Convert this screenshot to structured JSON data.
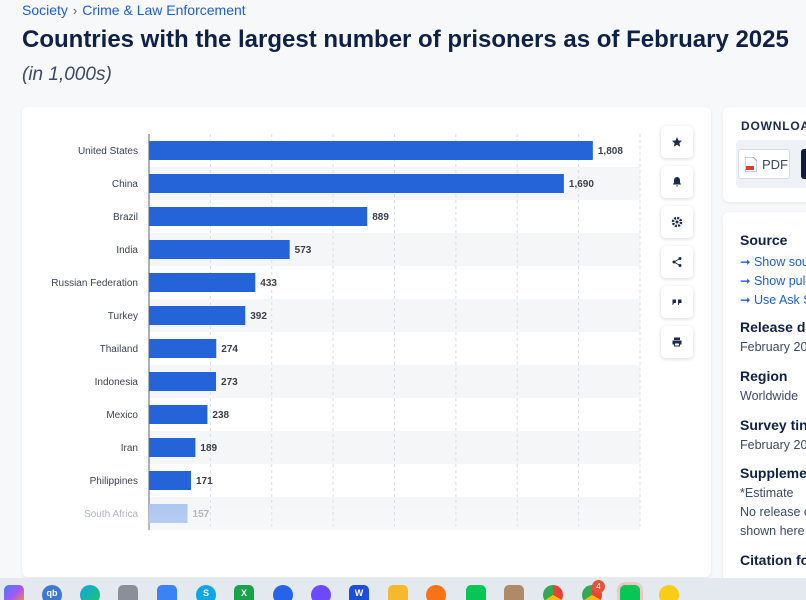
{
  "breadcrumb": {
    "items": [
      "Society",
      "Crime & Law Enforcement"
    ],
    "separator": "›"
  },
  "title": "Countries with the largest number of prisoners as of February 2025",
  "subtitle": "(in 1,000s)",
  "colors": {
    "bar": "#2563d9",
    "bar_fade": "#a9c4ef",
    "link": "#1d5fd4",
    "heading": "#0f2147"
  },
  "tools": [
    "star-icon",
    "bell-icon",
    "gear-icon",
    "share-icon",
    "quote-icon",
    "print-icon"
  ],
  "download": {
    "title": "DOWNLOA",
    "pdf_label": "PDF"
  },
  "meta": {
    "source_heading": "Source",
    "source_links": [
      "Show sou",
      "Show pul",
      "Use Ask S"
    ],
    "release_heading": "Release da",
    "release_value": "February 20",
    "region_heading": "Region",
    "region_value": "Worldwide",
    "survey_heading": "Survey tin",
    "survey_value": "February 20",
    "supplement_heading": "Suppleme",
    "supplement_lines": [
      "*Estimate",
      "No release c",
      "shown here"
    ],
    "citation_heading": "Citation fo"
  },
  "taskbar": {
    "icons": [
      "copilot",
      "qbittorrent",
      "edge",
      "app",
      "notepad",
      "skype",
      "excel",
      "zoom",
      "proton-vpn",
      "word",
      "folder",
      "firefox",
      "line",
      "photos",
      "chrome",
      "chrome-2",
      "line-2",
      "todo"
    ],
    "badge": "4"
  },
  "chart_data": {
    "type": "bar",
    "orientation": "horizontal",
    "categories": [
      "United States",
      "China",
      "Brazil",
      "India",
      "Russian Federation",
      "Turkey",
      "Thailand",
      "Indonesia",
      "Mexico",
      "Iran",
      "Philippines",
      "South Africa"
    ],
    "values": [
      1808,
      1690,
      889,
      573,
      433,
      392,
      274,
      273,
      238,
      189,
      171,
      157
    ],
    "value_labels": [
      "1,808",
      "1,690",
      "889",
      "573",
      "433",
      "392",
      "274",
      "273",
      "238",
      "189",
      "171",
      "157"
    ],
    "xlim": [
      0,
      2000
    ],
    "grid": true
  }
}
